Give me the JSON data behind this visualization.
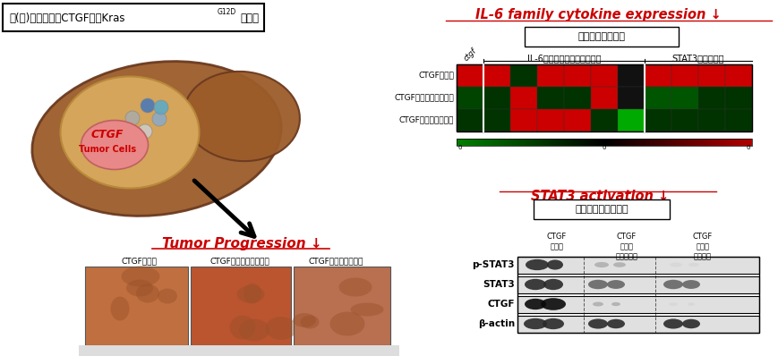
{
  "title_box_normal": "肝(癌)細胞特異的CTGF欠損Kras",
  "title_box_super": "G12D",
  "title_box_end": "マウス",
  "il6_title": "IL-6 family cytokine expression ↓",
  "heatmap_title": "腫瘾部遣伝子発現",
  "heatmap_rows": [
    "CTGF野生型",
    "CTGF欠損型（ヘテロ）",
    "CTGF欠損型（ホモ）"
  ],
  "heatmap_col_group1": "IL-6ファミリーサイトカイン",
  "heatmap_col_group2": "STAT3標的遣伝子",
  "heatmap_col_label_ctgf": "ctgf",
  "heatmap_colors_row0": [
    "#cc0000",
    "#cc0000",
    "#003300",
    "#cc0000",
    "#cc0000",
    "#cc0000",
    "#111111",
    "#cc0000",
    "#cc0000",
    "#cc0000",
    "#cc0000"
  ],
  "heatmap_colors_row1": [
    "#004400",
    "#003300",
    "#cc0000",
    "#003300",
    "#003300",
    "#cc0000",
    "#111111",
    "#005500",
    "#005500",
    "#003300",
    "#003300"
  ],
  "heatmap_colors_row2": [
    "#003300",
    "#003300",
    "#cc0000",
    "#cc0000",
    "#cc0000",
    "#003300",
    "#00aa00",
    "#003300",
    "#003300",
    "#003300",
    "#003300"
  ],
  "stat3_title": "STAT3 activation ↓",
  "wb_title": "腫瘾部タンパク発現",
  "wb_rows": [
    "p-STAT3",
    "STAT3",
    "CTGF",
    "β-actin"
  ],
  "wb_col1": "CTGF\n野生型",
  "wb_col2": "CTGF\n欠損型\n（ヘテロ）",
  "wb_col3": "CTGF\n欠損型\n（ホモ）",
  "tumor_title": "Tumor Progression ↓",
  "tumor_labels": [
    "CTGF野生型",
    "CTGF欠損型（ヘテロ）",
    "CTGF欠損型（ホモ）"
  ],
  "bg_color": "#ffffff",
  "red_color": "#cc0000",
  "green_color": "#006600"
}
